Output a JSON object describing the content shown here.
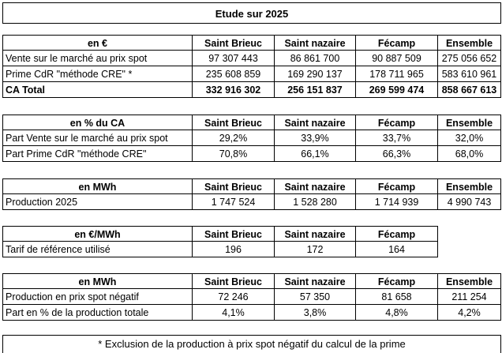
{
  "title": "Etude sur 2025",
  "columns": [
    "Saint Brieuc",
    "Saint nazaire",
    "Fécamp",
    "Ensemble"
  ],
  "table_ca": {
    "header": "en €",
    "rows": [
      {
        "label": "Vente sur le marché au prix spot",
        "values": [
          "97 307 443",
          "86 861 700",
          "90 887 509",
          "275 056 652"
        ]
      },
      {
        "label": "Prime CdR \"méthode CRE\" *",
        "values": [
          "235 608 859",
          "169 290 137",
          "178 711 965",
          "583 610 961"
        ]
      },
      {
        "label": "CA Total",
        "values": [
          "332 916 302",
          "256 151 837",
          "269 599 474",
          "858 667 613"
        ]
      }
    ]
  },
  "table_pct": {
    "header": "en % du CA",
    "rows": [
      {
        "label": "Part Vente sur le marché au prix spot",
        "values": [
          "29,2%",
          "33,9%",
          "33,7%",
          "32,0%"
        ]
      },
      {
        "label": "Part Prime CdR \"méthode CRE\"",
        "values": [
          "70,8%",
          "66,1%",
          "66,3%",
          "68,0%"
        ]
      }
    ]
  },
  "table_prod": {
    "header": "en MWh",
    "rows": [
      {
        "label": "Production 2025",
        "values": [
          "1 747 524",
          "1 528 280",
          "1 714 939",
          "4 990 743"
        ]
      }
    ]
  },
  "table_tarif": {
    "header": "en €/MWh",
    "columns": [
      "Saint Brieuc",
      "Saint nazaire",
      "Fécamp"
    ],
    "rows": [
      {
        "label": "Tarif de référence utilisé",
        "values": [
          "196",
          "172",
          "164"
        ]
      }
    ]
  },
  "table_neg": {
    "header": "en MWh",
    "rows": [
      {
        "label": "Production en prix spot négatif",
        "values": [
          "72 246",
          "57 350",
          "81 658",
          "211 254"
        ]
      },
      {
        "label": "Part en % de la production totale",
        "values": [
          "4,1%",
          "3,8%",
          "4,8%",
          "4,2%"
        ]
      }
    ]
  },
  "footnote": "* Exclusion de la production à prix spot négatif du calcul de la prime"
}
